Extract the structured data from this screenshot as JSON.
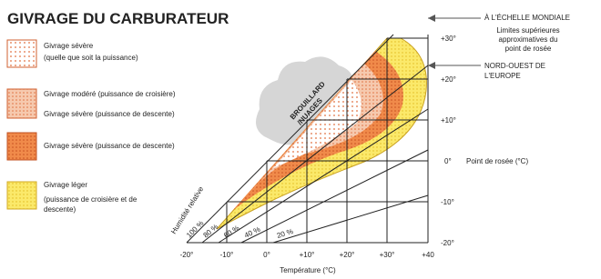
{
  "title": "GIVRAGE DU CARBURATEUR",
  "legend": [
    {
      "lines": [
        "Givrage sévère",
        "(quelle que soit la puissance)"
      ]
    },
    {
      "lines": [
        "Givrage modéré (puissance de croisière)",
        "Givrage sévère (puissance de descente)"
      ]
    },
    {
      "lines": [
        "Givrage sévère (puissance de descente)"
      ]
    },
    {
      "lines": [
        "Givrage léger",
        "(puissance de croisière et de",
        "descente)"
      ]
    }
  ],
  "cloud_label": [
    "BROUILLARD",
    "/NUAGES"
  ],
  "humidity": {
    "title": "Humidité relative",
    "labels": [
      "100 %",
      "80 %",
      "60 %",
      "40 %",
      "20 %"
    ]
  },
  "dew_point": {
    "title": "Point de rosée (°C)",
    "labels": [
      "+30°",
      "+20°",
      "+10°",
      "0°",
      "-10°",
      "-20°"
    ]
  },
  "temperature": {
    "title": "Température (°C)",
    "labels": [
      "-20°",
      "-10°",
      "0°",
      "+10°",
      "+20°",
      "+30°",
      "+40"
    ]
  },
  "annotations": {
    "world": "À L'ÉCHELLE MONDIALE",
    "limits": [
      "Limites supérieures",
      "approximatives du",
      "point de rosée"
    ],
    "europe": [
      "NORD-OUEST DE",
      "L'EUROPE"
    ]
  }
}
